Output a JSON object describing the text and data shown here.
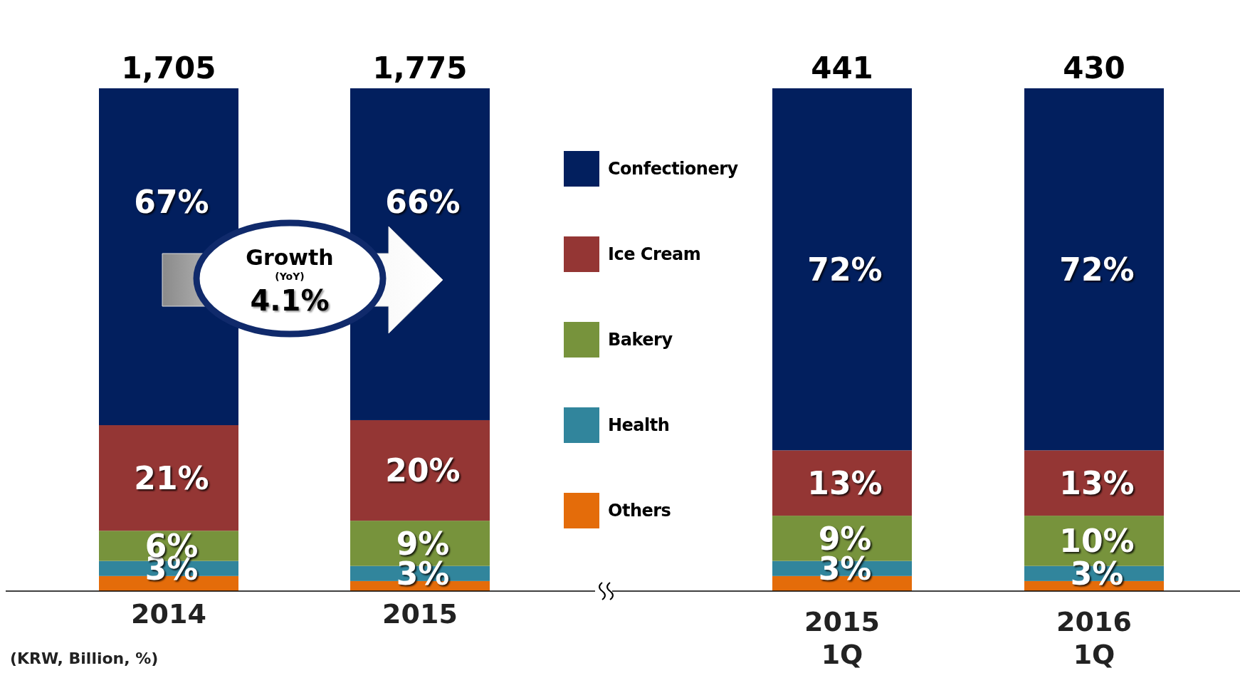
{
  "chart_data": {
    "type": "bar",
    "stacked": true,
    "legend": "center",
    "data_labels": false,
    "categories": [
      "2014",
      "2015",
      "2015\n1Q",
      "2016\n1Q"
    ],
    "series": [
      {
        "name": "Others",
        "color": "#e46c0a",
        "values": [
          3,
          2,
          3,
          2
        ],
        "value_labels": [
          null,
          null,
          null,
          null
        ]
      },
      {
        "name": "Health",
        "color": "#31859c",
        "values": [
          3,
          3,
          3,
          3
        ],
        "value_labels": [
          "3%",
          "3%",
          "3%",
          "3%"
        ]
      },
      {
        "name": "Bakery",
        "color": "#77933c",
        "values": [
          6,
          9,
          9,
          10
        ],
        "value_labels": [
          "6%",
          "9%",
          "9%",
          "10%"
        ]
      },
      {
        "name": "Ice Cream",
        "color": "#943634",
        "values": [
          21,
          20,
          13,
          13
        ],
        "value_labels": [
          "21%",
          "20%",
          "13%",
          "13%"
        ]
      },
      {
        "name": "Confectionery",
        "color": "#021f5e",
        "values": [
          67,
          66,
          72,
          72
        ],
        "value_labels": [
          "67%",
          "66%",
          "72%",
          "72%"
        ]
      }
    ],
    "annotations": [
      "Growth",
      "(YoY)",
      "4.1%",
      "(KRW, Billion, %)",
      {
        "text": "1,705",
        "x": "2014",
        "y": 100
      },
      {
        "text": "1,775",
        "x": "2015",
        "y": 100
      },
      {
        "text": "441",
        "x": "2015\n1Q",
        "y": 100
      },
      {
        "text": "430",
        "x": "2016\n1Q",
        "y": 100
      }
    ]
  }
}
